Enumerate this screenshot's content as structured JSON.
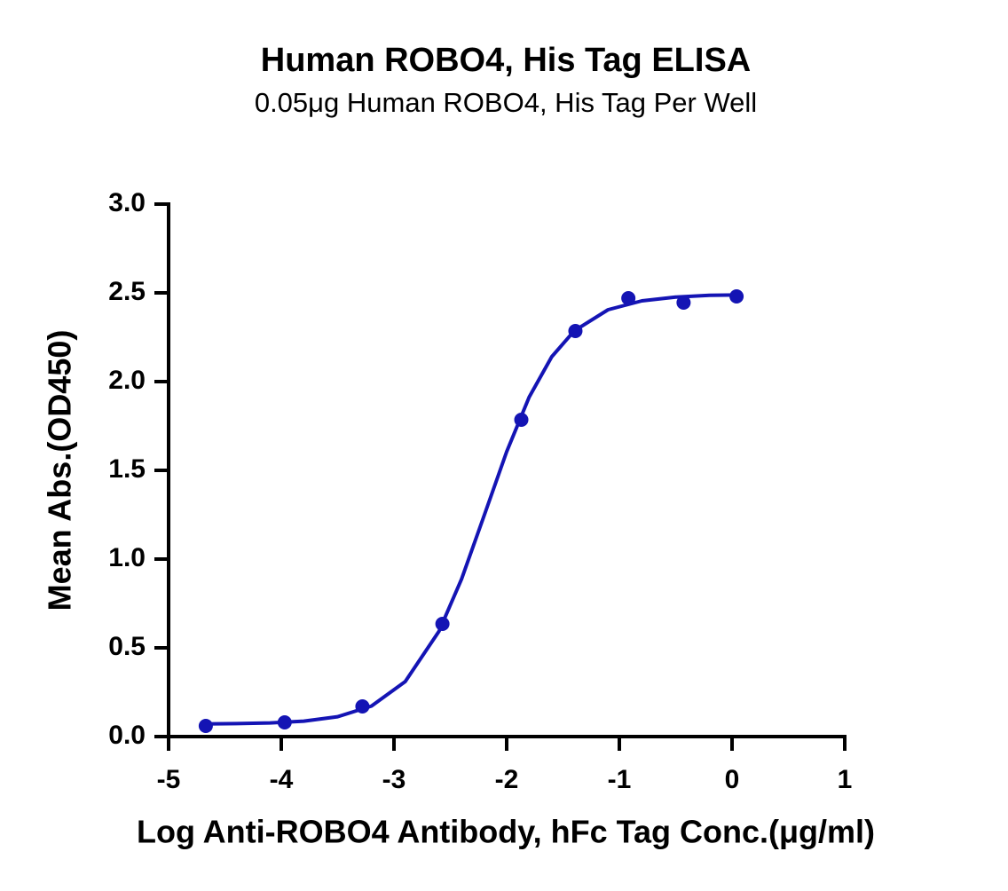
{
  "chart_data": {
    "type": "scatter",
    "title": "Human ROBO4, His Tag ELISA",
    "subtitle": "0.05μg Human ROBO4, His Tag Per Well",
    "x_label": "Log Anti-ROBO4 Antibody, hFc Tag Conc.(μg/ml)",
    "y_label": "Mean Abs.(OD450)",
    "xlim": [
      -5,
      1
    ],
    "ylim": [
      0,
      3
    ],
    "xticks": [
      -5,
      -4,
      -3,
      -2,
      -1,
      0,
      1
    ],
    "yticks": [
      {
        "value": 0,
        "label": "0.0"
      },
      {
        "value": 0.5,
        "label": "0.5"
      },
      {
        "value": 1,
        "label": "1.0"
      },
      {
        "value": 1.5,
        "label": "1.5"
      },
      {
        "value": 2,
        "label": "2.0"
      },
      {
        "value": 2.5,
        "label": "2.5"
      },
      {
        "value": 3,
        "label": "3.0"
      }
    ],
    "grid": false,
    "series": [
      {
        "type": "scatter",
        "color": "#1414b4",
        "x": [
          -4.67,
          -3.97,
          -3.28,
          -2.57,
          -1.87,
          -1.39,
          -0.92,
          -0.43,
          0.04
        ],
        "values": [
          0.06,
          0.08,
          0.17,
          0.635,
          1.785,
          2.285,
          2.47,
          2.445,
          2.48
        ]
      },
      {
        "type": "line",
        "color": "#1414b4",
        "x": [
          -4.7,
          -4.4,
          -4.1,
          -3.8,
          -3.5,
          -3.2,
          -2.9,
          -2.6,
          -2.4,
          -2.2,
          -2.0,
          -1.8,
          -1.6,
          -1.4,
          -1.1,
          -0.8,
          -0.5,
          -0.2,
          0.04
        ],
        "values": [
          0.071,
          0.073,
          0.077,
          0.087,
          0.112,
          0.172,
          0.31,
          0.594,
          0.888,
          1.245,
          1.605,
          1.913,
          2.14,
          2.286,
          2.405,
          2.455,
          2.476,
          2.486,
          2.488
        ]
      }
    ]
  }
}
